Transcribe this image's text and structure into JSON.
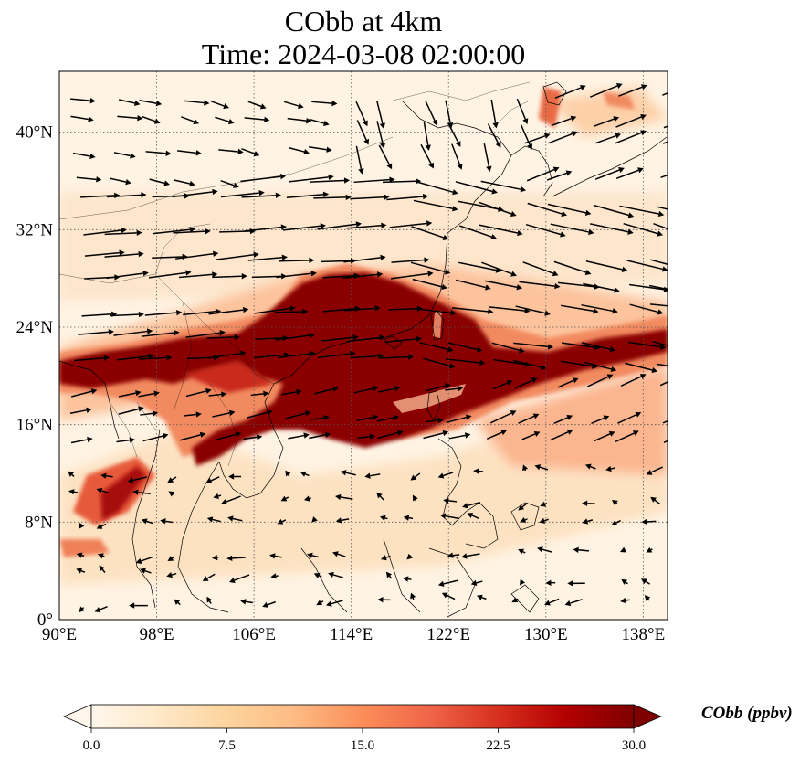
{
  "title": {
    "line1": "CObb at 4km",
    "line2": "Time: 2024-03-08 02:00:00"
  },
  "map": {
    "lon_range": [
      90,
      140
    ],
    "lat_range": [
      0,
      45
    ],
    "lon_ticks": [
      {
        "value": 90,
        "label": "90°E"
      },
      {
        "value": 98,
        "label": "98°E"
      },
      {
        "value": 106,
        "label": "106°E"
      },
      {
        "value": 114,
        "label": "114°E"
      },
      {
        "value": 122,
        "label": "122°E"
      },
      {
        "value": 130,
        "label": "130°E"
      },
      {
        "value": 138,
        "label": "138°E"
      }
    ],
    "lat_ticks": [
      {
        "value": 0,
        "label": "0°"
      },
      {
        "value": 8,
        "label": "8°N"
      },
      {
        "value": 16,
        "label": "16°N"
      },
      {
        "value": 24,
        "label": "24°N"
      },
      {
        "value": 32,
        "label": "32°N"
      },
      {
        "value": 40,
        "label": "40°N"
      }
    ],
    "gridlines": "dotted",
    "wind_vectors": true,
    "colormap": "OrRd"
  },
  "colorbar": {
    "label": "CObb (ppbv)",
    "min": 0.0,
    "max": 30.0,
    "extend": "both",
    "ticks": [
      {
        "value": 0,
        "label": "0.0"
      },
      {
        "value": 7.5,
        "label": "7.5"
      },
      {
        "value": 15,
        "label": "15.0"
      },
      {
        "value": 22.5,
        "label": "22.5"
      },
      {
        "value": 30,
        "label": "30.0"
      }
    ],
    "colors": [
      "#fff7ec",
      "#fee8c8",
      "#fdd49e",
      "#fdbb84",
      "#fc8d59",
      "#ef6548",
      "#d7301f",
      "#b30000",
      "#7f0000"
    ]
  }
}
